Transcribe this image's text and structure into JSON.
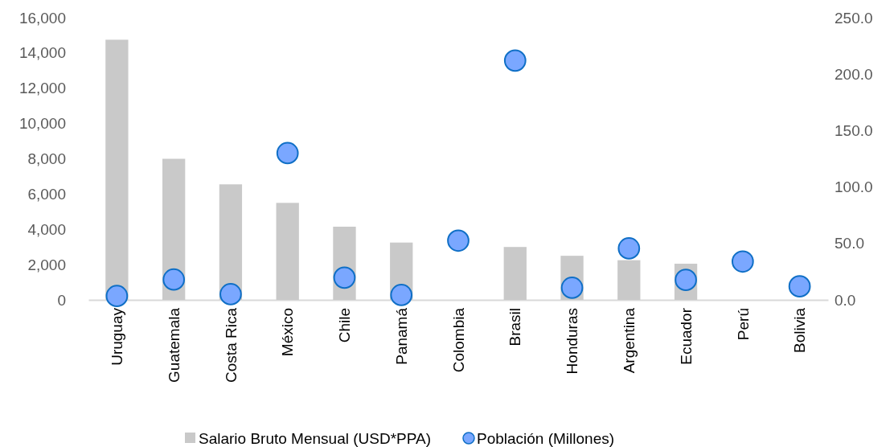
{
  "chart_data": {
    "type": "bar",
    "categories": [
      "Uruguay",
      "Guatemala",
      "Costa Rica",
      "México",
      "Chile",
      "Panamá",
      "Colombia",
      "Brasil",
      "Honduras",
      "Argentina",
      "Ecuador",
      "Perú",
      "Bolivia"
    ],
    "series": [
      {
        "name": "Salario Bruto Mensual (USD*PPA)",
        "color": "#c9c9c9",
        "values": [
          14750,
          8000,
          6550,
          5500,
          4150,
          3250,
          null,
          3000,
          2500,
          2250,
          2050,
          null,
          null
        ]
      },
      {
        "name": "Población (Millones)",
        "type": "scatter",
        "axis": "y2",
        "color": "#7aa7ff",
        "values": [
          3.4,
          18,
          5,
          130,
          19.7,
          4.3,
          52.5,
          212,
          10.7,
          45.6,
          17.7,
          34,
          12
        ]
      }
    ],
    "ylim": [
      0,
      16000
    ],
    "yticks": [
      {
        "value": 0,
        "label": "0"
      },
      {
        "value": 2000,
        "label": "2,000"
      },
      {
        "value": 4000,
        "label": "4,000"
      },
      {
        "value": 6000,
        "label": "6,000"
      },
      {
        "value": 8000,
        "label": "8,000"
      },
      {
        "value": 10000,
        "label": "10,000"
      },
      {
        "value": 12000,
        "label": "12,000"
      },
      {
        "value": 14000,
        "label": "14,000"
      },
      {
        "value": 16000,
        "label": "16,000"
      }
    ],
    "y2lim": [
      0,
      250
    ],
    "y2ticks": [
      {
        "value": 0,
        "label": "0.0"
      },
      {
        "value": 50,
        "label": "50.0"
      },
      {
        "value": 100,
        "label": "100.0"
      },
      {
        "value": 150,
        "label": "150.0"
      },
      {
        "value": 200,
        "label": "200.0"
      },
      {
        "value": 250,
        "label": "250.0"
      }
    ],
    "marker": "circle",
    "legend": "bottom",
    "grid": false
  }
}
